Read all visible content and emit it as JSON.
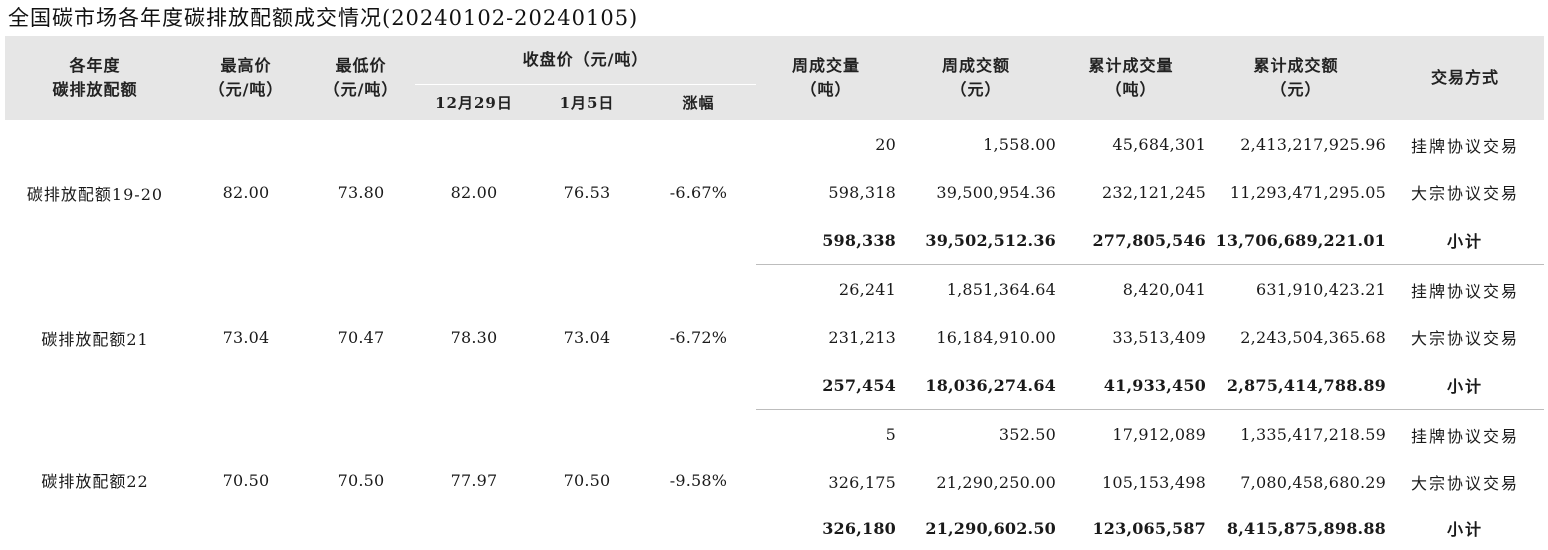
{
  "title": "全国碳市场各年度碳排放配额成交情况(20240102-20240105)",
  "headers": {
    "year": [
      "各年度",
      "碳排放配额"
    ],
    "high": [
      "最高价",
      "（元/吨）"
    ],
    "low": [
      "最低价",
      "（元/吨）"
    ],
    "close_group": "收盘价（元/吨）",
    "close_dec29": "12月29日",
    "close_jan5": "1月5日",
    "change": "涨幅",
    "week_volume": [
      "周成交量",
      "（吨）"
    ],
    "week_amount": [
      "周成交额",
      "（元）"
    ],
    "cum_volume": [
      "累计成交量",
      "（吨）"
    ],
    "cum_amount": [
      "累计成交额",
      "（元）"
    ],
    "method": "交易方式"
  },
  "groups": [
    {
      "name": "碳排放配额19-20",
      "high": "82.00",
      "low": "73.80",
      "close_dec29": "82.00",
      "close_jan5": "76.53",
      "change": "-6.67%",
      "rows": [
        {
          "week_volume": "20",
          "week_amount": "1,558.00",
          "cum_volume": "45,684,301",
          "cum_amount": "2,413,217,925.96",
          "method": "挂牌协议交易"
        },
        {
          "week_volume": "598,318",
          "week_amount": "39,500,954.36",
          "cum_volume": "232,121,245",
          "cum_amount": "11,293,471,295.05",
          "method": "大宗协议交易"
        },
        {
          "week_volume": "598,338",
          "week_amount": "39,502,512.36",
          "cum_volume": "277,805,546",
          "cum_amount": "13,706,689,221.01",
          "method": "小计"
        }
      ]
    },
    {
      "name": "碳排放配额21",
      "high": "73.04",
      "low": "70.47",
      "close_dec29": "78.30",
      "close_jan5": "73.04",
      "change": "-6.72%",
      "rows": [
        {
          "week_volume": "26,241",
          "week_amount": "1,851,364.64",
          "cum_volume": "8,420,041",
          "cum_amount": "631,910,423.21",
          "method": "挂牌协议交易"
        },
        {
          "week_volume": "231,213",
          "week_amount": "16,184,910.00",
          "cum_volume": "33,513,409",
          "cum_amount": "2,243,504,365.68",
          "method": "大宗协议交易"
        },
        {
          "week_volume": "257,454",
          "week_amount": "18,036,274.64",
          "cum_volume": "41,933,450",
          "cum_amount": "2,875,414,788.89",
          "method": "小计"
        }
      ]
    },
    {
      "name": "碳排放配额22",
      "high": "70.50",
      "low": "70.50",
      "close_dec29": "77.97",
      "close_jan5": "70.50",
      "change": "-9.58%",
      "rows": [
        {
          "week_volume": "5",
          "week_amount": "352.50",
          "cum_volume": "17,912,089",
          "cum_amount": "1,335,417,218.59",
          "method": "挂牌协议交易"
        },
        {
          "week_volume": "326,175",
          "week_amount": "21,290,250.00",
          "cum_volume": "105,153,498",
          "cum_amount": "7,080,458,680.29",
          "method": "大宗协议交易"
        },
        {
          "week_volume": "326,180",
          "week_amount": "21,290,602.50",
          "cum_volume": "123,065,587",
          "cum_amount": "8,415,875,898.88",
          "method": "小计"
        }
      ]
    }
  ]
}
